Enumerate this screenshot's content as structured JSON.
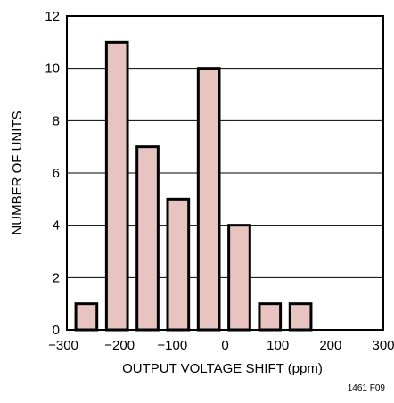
{
  "chart_data": {
    "type": "bar",
    "title": "",
    "xlabel": "OUTPUT VOLTAGE SHIFT (ppm)",
    "ylabel": "NUMBER OF UNITS",
    "xlim": [
      -300,
      300
    ],
    "ylim": [
      0,
      12
    ],
    "xticks": [
      "−300",
      "−200",
      "−100",
      "0",
      "100",
      "200",
      "300"
    ],
    "yticks": [
      "0",
      "2",
      "4",
      "6",
      "8",
      "10",
      "12"
    ],
    "bin_width": 40,
    "x": [
      -263,
      -205,
      -147,
      -89,
      -31,
      27,
      85,
      143
    ],
    "values": [
      1,
      11,
      7,
      5,
      10,
      4,
      1,
      1
    ],
    "grid": true,
    "bar_color": "#e8c4c0",
    "edge_color": "#000000"
  },
  "figure_id": "1461 F09"
}
